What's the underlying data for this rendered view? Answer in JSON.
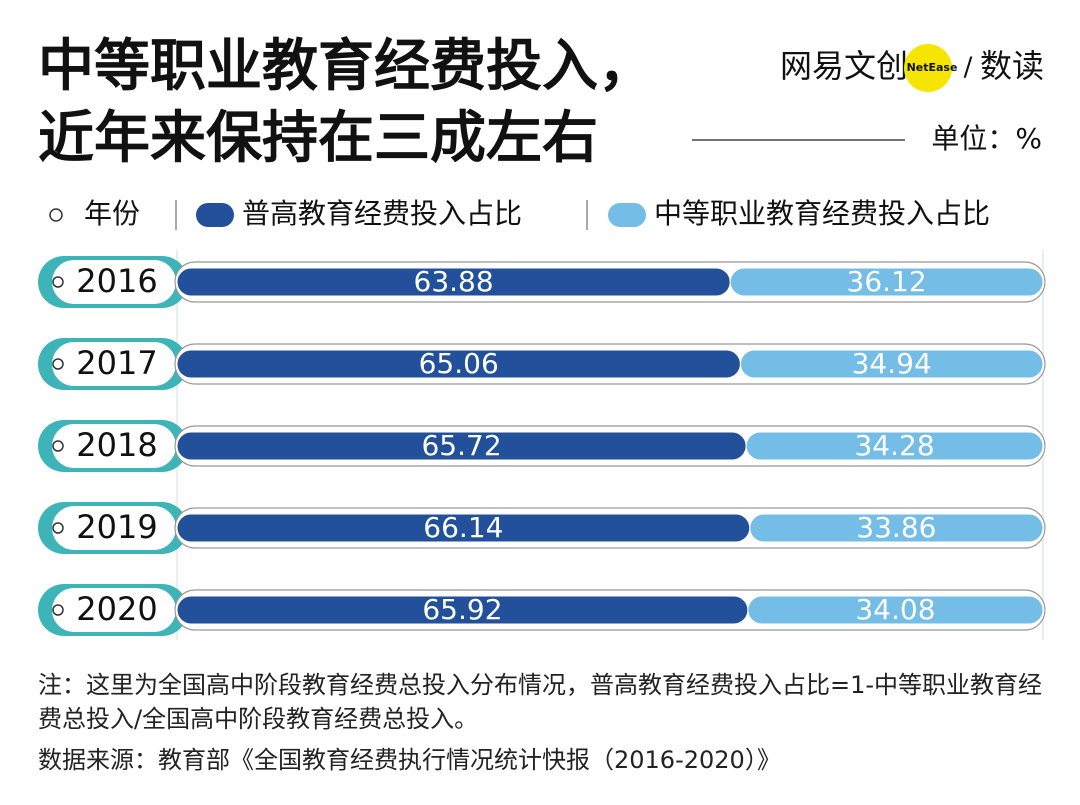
{
  "chart_data": {
    "type": "stacked_bar_horizontal",
    "title": [
      "中等职业教育经费投入，",
      "近年来保持在三成左右"
    ],
    "unit": "单位：%",
    "category_legend": "年份",
    "categories": [
      "2016",
      "2017",
      "2018",
      "2019",
      "2020"
    ],
    "series": [
      {
        "name": "普高教育经费投入占比",
        "color": "#22509a",
        "values": [
          63.88,
          65.06,
          65.72,
          66.14,
          65.92
        ]
      },
      {
        "name": "中等职业教育经费投入占比",
        "color": "#74bde6",
        "values": [
          36.12,
          34.94,
          34.28,
          33.86,
          34.08
        ]
      }
    ],
    "xlim": [
      0,
      100
    ],
    "note": "注：这里为全国高中阶段教育经费总投入分布情况，普高教育经费投入占比=1-中等职业教育经费总投入/全国高中阶段教育经费总投入。",
    "source": "数据来源：教育部《全国教育经费执行情况统计快报（2016-2020）》",
    "logo": {
      "brand": "网易文创",
      "badge": "NetEase",
      "separator": "/",
      "column": "数读"
    }
  }
}
